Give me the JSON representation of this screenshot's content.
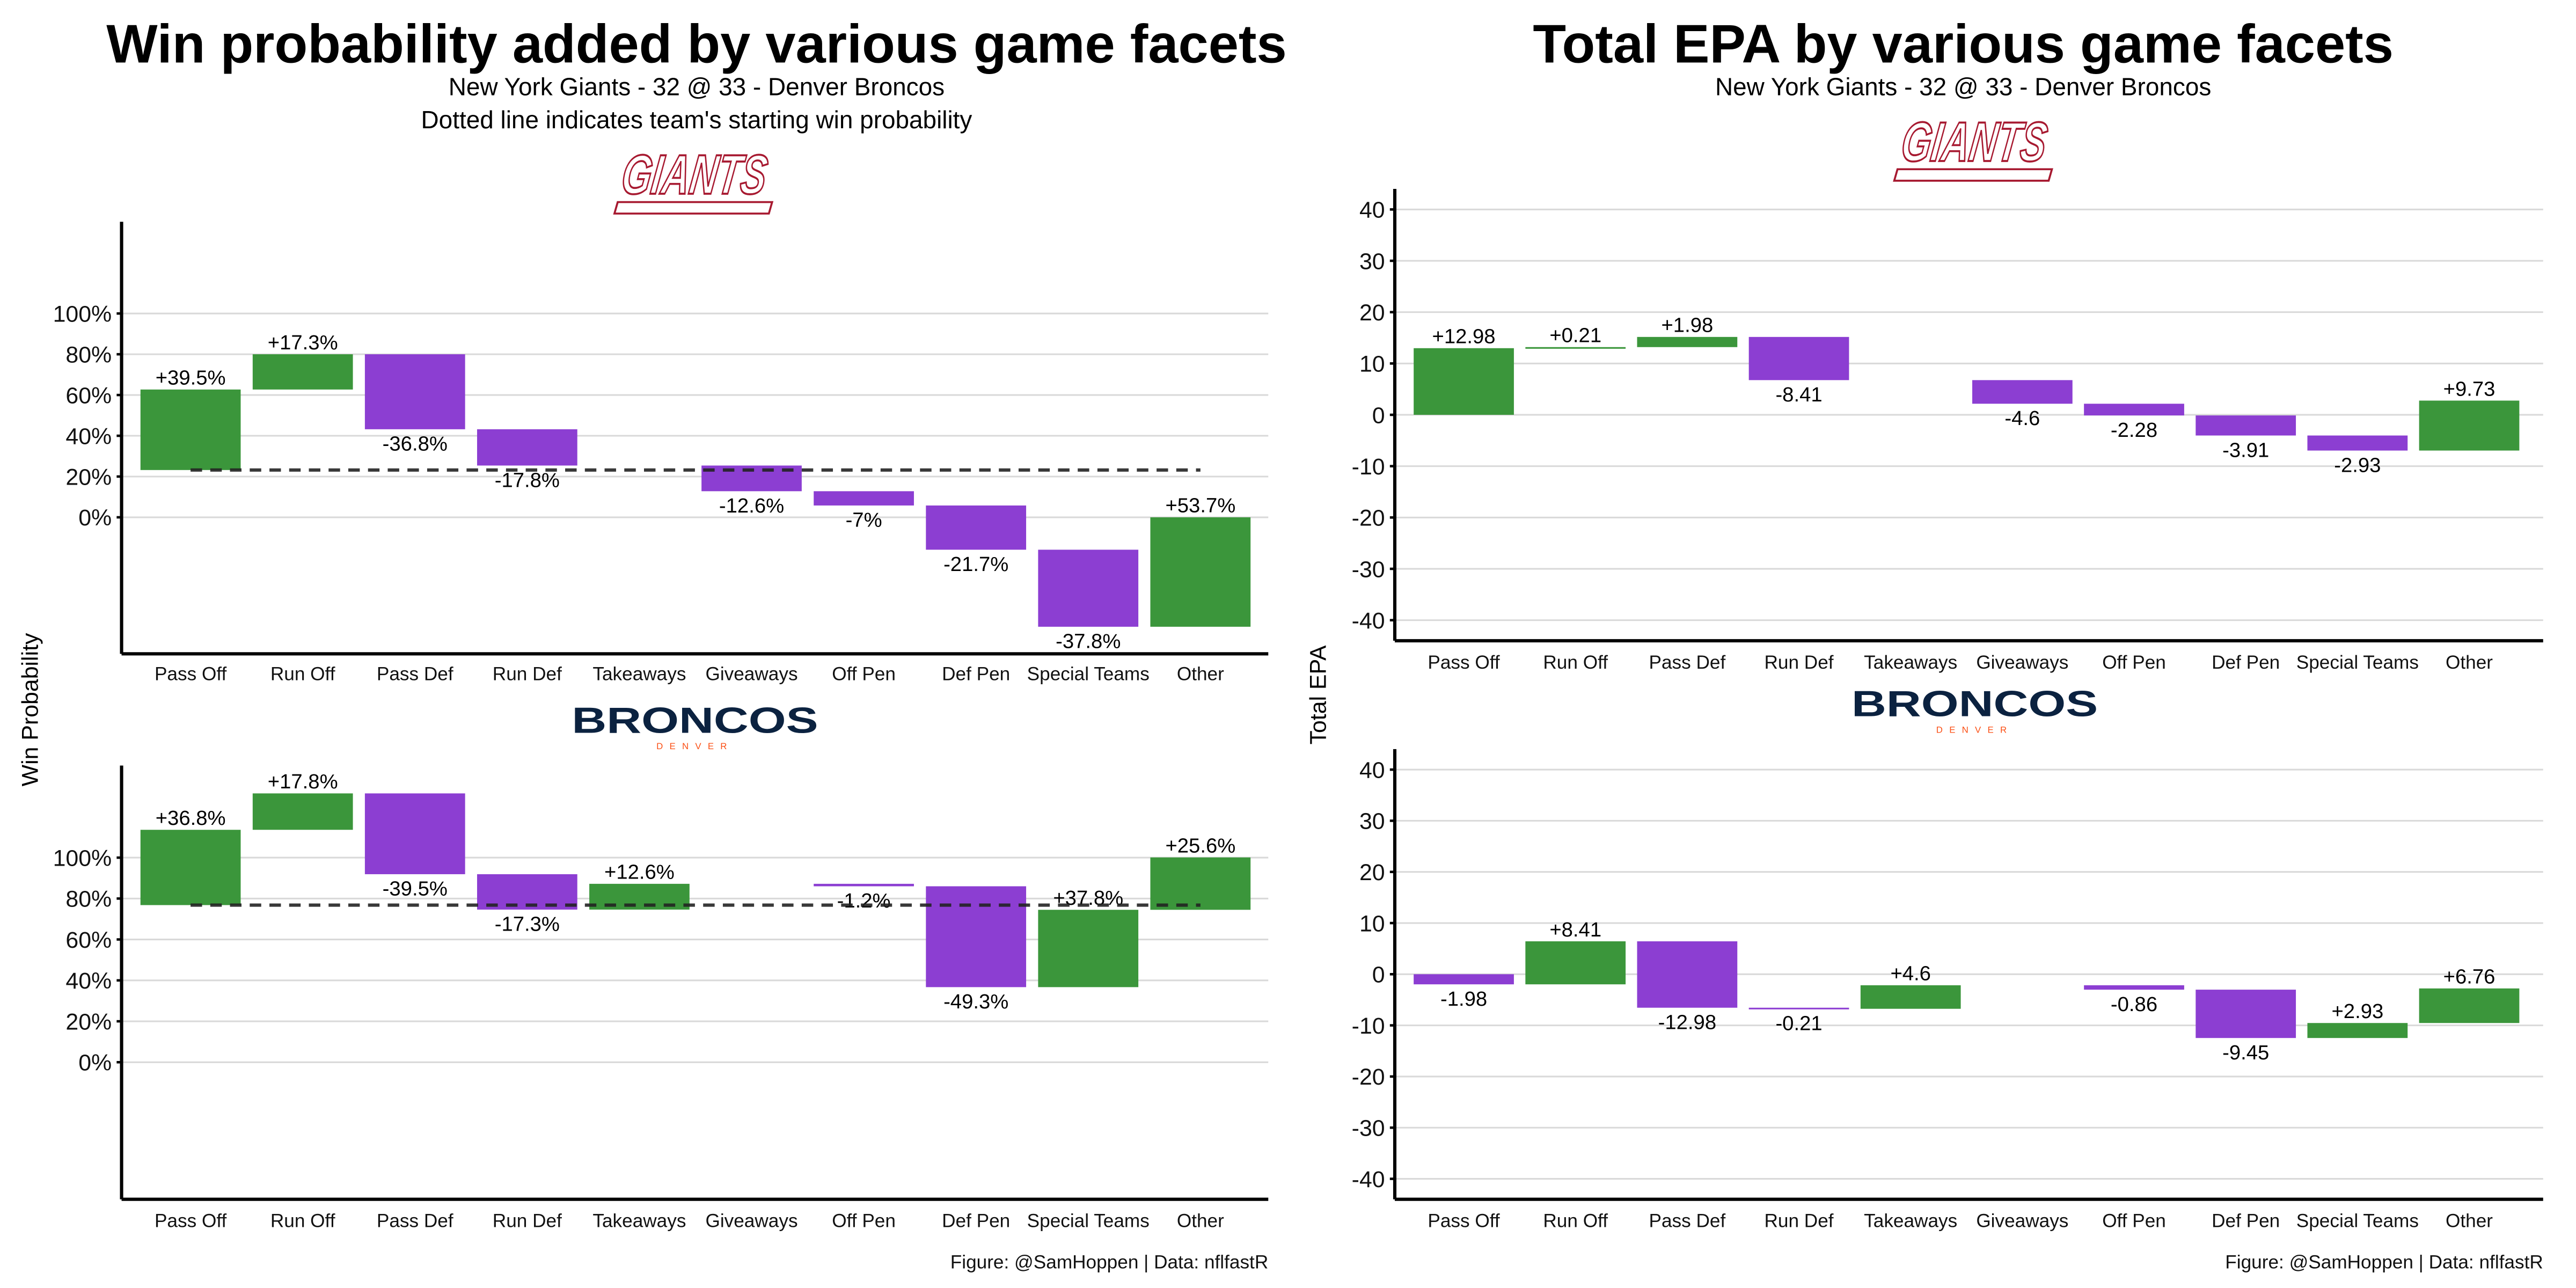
{
  "colors": {
    "positive": "#379437",
    "negative": "#8a3ad1",
    "grid": "#d9d9d9",
    "giants": "#a71930",
    "broncos_navy": "#0b2240",
    "broncos_orange": "#fb4f14"
  },
  "left": {
    "title": "Win probability added by various game facets",
    "subtitle1": "New York Giants - 32 @ 33 - Denver Broncos",
    "subtitle2": "Dotted line indicates team's starting win probability",
    "ylabel": "Win Probability",
    "caption": "Figure: @SamHoppen | Data: nflfastR"
  },
  "right": {
    "title": "Total EPA by various game facets",
    "subtitle1": "New York Giants - 32 @ 33 - Denver Broncos",
    "ylabel": "Total EPA",
    "caption": "Figure: @SamHoppen | Data: nflfastR"
  },
  "logos": {
    "giants": "GIANTS",
    "broncos": "BRONCOS",
    "broncos_sub": "DENVER"
  },
  "chart_data": [
    {
      "type": "bar",
      "subtype": "waterfall",
      "team": "New York Giants",
      "metric": "Win probability",
      "categories": [
        "Pass Off",
        "Run Off",
        "Pass Def",
        "Run Def",
        "Takeaways",
        "Giveaways",
        "Off Pen",
        "Def Pen",
        "Special Teams",
        "Other"
      ],
      "start": 23.2,
      "values": [
        39.5,
        17.3,
        -36.8,
        -17.8,
        null,
        -12.6,
        -7,
        -21.7,
        -37.8,
        53.7
      ],
      "labels": [
        "+39.5%",
        "+17.3%",
        "-36.8%",
        "-17.8%",
        "",
        "-12.6%",
        "-7%",
        "-21.7%",
        "-37.8%",
        "+53.7%"
      ],
      "ylim": [
        -67,
        145
      ],
      "yticks": [
        0,
        20,
        40,
        60,
        80,
        100
      ],
      "ytick_labels": [
        "0%",
        "20%",
        "40%",
        "60%",
        "80%",
        "100%"
      ],
      "reference_line": 23.2,
      "grid": true
    },
    {
      "type": "bar",
      "subtype": "waterfall",
      "team": "Denver Broncos",
      "metric": "Win probability",
      "categories": [
        "Pass Off",
        "Run Off",
        "Pass Def",
        "Run Def",
        "Takeaways",
        "Giveaways",
        "Off Pen",
        "Def Pen",
        "Special Teams",
        "Other"
      ],
      "start": 76.8,
      "values": [
        36.8,
        17.8,
        -39.5,
        -17.3,
        12.6,
        null,
        -1.2,
        -49.3,
        37.8,
        25.6
      ],
      "labels": [
        "+36.8%",
        "+17.8%",
        "-39.5%",
        "-17.3%",
        "+12.6%",
        "",
        "-1.2%",
        "-49.3%",
        "+37.8%",
        "+25.6%"
      ],
      "ylim": [
        -67,
        145
      ],
      "yticks": [
        0,
        20,
        40,
        60,
        80,
        100
      ],
      "ytick_labels": [
        "0%",
        "20%",
        "40%",
        "60%",
        "80%",
        "100%"
      ],
      "reference_line": 76.8,
      "grid": true
    },
    {
      "type": "bar",
      "subtype": "waterfall",
      "team": "New York Giants",
      "metric": "Total EPA",
      "categories": [
        "Pass Off",
        "Run Off",
        "Pass Def",
        "Run Def",
        "Takeaways",
        "Giveaways",
        "Off Pen",
        "Def Pen",
        "Special Teams",
        "Other"
      ],
      "start": 0,
      "values": [
        12.98,
        0.21,
        1.98,
        -8.41,
        null,
        -4.6,
        -2.28,
        -3.91,
        -2.93,
        9.73
      ],
      "labels": [
        "+12.98",
        "+0.21",
        "+1.98",
        "-8.41",
        "",
        "-4.6",
        "-2.28",
        "-3.91",
        "-2.93",
        "+9.73"
      ],
      "ylim": [
        -44,
        44
      ],
      "yticks": [
        -40,
        -30,
        -20,
        -10,
        0,
        10,
        20,
        30,
        40
      ],
      "ytick_labels": [
        "-40",
        "-30",
        "-20",
        "-10",
        "0",
        "10",
        "20",
        "30",
        "40"
      ],
      "reference_line": null,
      "grid": true
    },
    {
      "type": "bar",
      "subtype": "waterfall",
      "team": "Denver Broncos",
      "metric": "Total EPA",
      "categories": [
        "Pass Off",
        "Run Off",
        "Pass Def",
        "Run Def",
        "Takeaways",
        "Giveaways",
        "Off Pen",
        "Def Pen",
        "Special Teams",
        "Other"
      ],
      "start": 0,
      "values": [
        -1.98,
        8.41,
        -12.98,
        -0.21,
        4.6,
        null,
        -0.86,
        -9.45,
        2.93,
        6.76
      ],
      "labels": [
        "-1.98",
        "+8.41",
        "-12.98",
        "-0.21",
        "+4.6",
        "",
        "-0.86",
        "-9.45",
        "+2.93",
        "+6.76"
      ],
      "ylim": [
        -44,
        44
      ],
      "yticks": [
        -40,
        -30,
        -20,
        -10,
        0,
        10,
        20,
        30,
        40
      ],
      "ytick_labels": [
        "-40",
        "-30",
        "-20",
        "-10",
        "0",
        "10",
        "20",
        "30",
        "40"
      ],
      "reference_line": null,
      "grid": true
    }
  ]
}
